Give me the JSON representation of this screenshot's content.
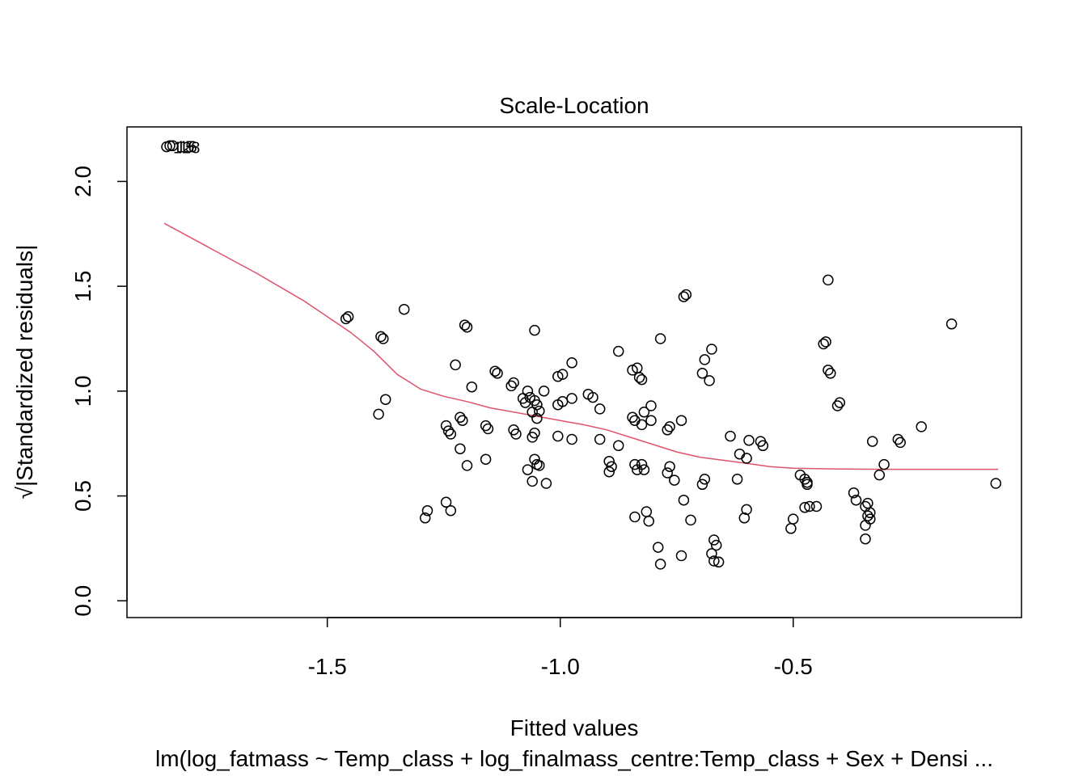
{
  "chart_data": {
    "type": "scatter",
    "title": "Scale-Location",
    "xlabel": "Fitted values",
    "ylabel": "√|Standardized residuals|",
    "subtitle": "lm(log_fatmass ~ Temp_class + log_finalmass_centre:Temp_class + Sex + Densi ...",
    "xlim": [
      -1.93,
      -0.01
    ],
    "ylim": [
      -0.08,
      2.26
    ],
    "x_ticks": [
      -1.5,
      -1.0,
      -0.5
    ],
    "x_tick_labels": [
      "-1.5",
      "-1.0",
      "-0.5"
    ],
    "y_ticks": [
      0.0,
      0.5,
      1.0,
      1.5,
      2.0
    ],
    "y_tick_labels": [
      "0.0",
      "0.5",
      "1.0",
      "1.5",
      "2.0"
    ],
    "grid": false,
    "colors": {
      "points": "#000000",
      "smoother": "#DF536B"
    },
    "labeled_points": [
      {
        "x": -1.845,
        "y": 2.165,
        "label": "128"
      },
      {
        "x": -1.838,
        "y": 2.17,
        "label": "15"
      },
      {
        "x": -1.832,
        "y": 2.17,
        "label": "16"
      }
    ],
    "points": [
      [
        -1.46,
        1.345
      ],
      [
        -1.455,
        1.355
      ],
      [
        -1.335,
        1.39
      ],
      [
        -1.385,
        1.26
      ],
      [
        -1.38,
        1.25
      ],
      [
        -1.39,
        0.89
      ],
      [
        -1.375,
        0.96
      ],
      [
        -1.205,
        1.315
      ],
      [
        -1.2,
        1.305
      ],
      [
        -1.225,
        1.125
      ],
      [
        -1.19,
        1.02
      ],
      [
        -1.215,
        0.875
      ],
      [
        -1.21,
        0.86
      ],
      [
        -1.245,
        0.835
      ],
      [
        -1.24,
        0.81
      ],
      [
        -1.235,
        0.795
      ],
      [
        -1.215,
        0.725
      ],
      [
        -1.2,
        0.645
      ],
      [
        -1.245,
        0.47
      ],
      [
        -1.285,
        0.43
      ],
      [
        -1.29,
        0.395
      ],
      [
        -1.235,
        0.43
      ],
      [
        -1.16,
        0.675
      ],
      [
        -1.16,
        0.835
      ],
      [
        -1.155,
        0.82
      ],
      [
        -1.14,
        1.095
      ],
      [
        -1.135,
        1.085
      ],
      [
        -1.105,
        1.025
      ],
      [
        -1.1,
        1.04
      ],
      [
        -1.1,
        0.815
      ],
      [
        -1.095,
        0.795
      ],
      [
        -1.08,
        0.965
      ],
      [
        -1.075,
        0.945
      ],
      [
        -1.07,
        1.0
      ],
      [
        -1.065,
        0.97
      ],
      [
        -1.06,
        0.9
      ],
      [
        -1.06,
        0.78
      ],
      [
        -1.055,
        0.955
      ],
      [
        -1.05,
        0.935
      ],
      [
        -1.05,
        0.87
      ],
      [
        -1.055,
        0.8
      ],
      [
        -1.06,
        0.57
      ],
      [
        -1.07,
        0.625
      ],
      [
        -1.055,
        0.675
      ],
      [
        -1.05,
        0.65
      ],
      [
        -1.045,
        0.645
      ],
      [
        -1.055,
        1.29
      ],
      [
        -1.035,
        1.0
      ],
      [
        -1.045,
        0.905
      ],
      [
        -1.005,
        1.07
      ],
      [
        -0.995,
        1.08
      ],
      [
        -0.975,
        1.135
      ],
      [
        -1.005,
        0.935
      ],
      [
        -0.995,
        0.95
      ],
      [
        -0.975,
        0.965
      ],
      [
        -1.005,
        0.785
      ],
      [
        -0.975,
        0.77
      ],
      [
        -1.03,
        0.56
      ],
      [
        -0.94,
        0.985
      ],
      [
        -0.93,
        0.97
      ],
      [
        -0.915,
        0.915
      ],
      [
        -0.915,
        0.77
      ],
      [
        -0.895,
        0.665
      ],
      [
        -0.89,
        0.64
      ],
      [
        -0.895,
        0.615
      ],
      [
        -0.875,
        0.74
      ],
      [
        -0.875,
        1.19
      ],
      [
        -0.845,
        1.1
      ],
      [
        -0.835,
        1.11
      ],
      [
        -0.83,
        1.065
      ],
      [
        -0.825,
        1.055
      ],
      [
        -0.845,
        0.875
      ],
      [
        -0.84,
        0.86
      ],
      [
        -0.82,
        0.9
      ],
      [
        -0.805,
        0.93
      ],
      [
        -0.805,
        0.86
      ],
      [
        -0.825,
        0.84
      ],
      [
        -0.84,
        0.65
      ],
      [
        -0.835,
        0.625
      ],
      [
        -0.825,
        0.65
      ],
      [
        -0.82,
        0.625
      ],
      [
        -0.785,
        1.25
      ],
      [
        -0.77,
        0.815
      ],
      [
        -0.765,
        0.83
      ],
      [
        -0.765,
        0.64
      ],
      [
        -0.77,
        0.61
      ],
      [
        -0.755,
        0.575
      ],
      [
        -0.84,
        0.4
      ],
      [
        -0.815,
        0.425
      ],
      [
        -0.81,
        0.38
      ],
      [
        -0.79,
        0.255
      ],
      [
        -0.785,
        0.175
      ],
      [
        -0.74,
        0.86
      ],
      [
        -0.735,
        1.45
      ],
      [
        -0.73,
        1.46
      ],
      [
        -0.735,
        0.48
      ],
      [
        -0.72,
        0.385
      ],
      [
        -0.74,
        0.215
      ],
      [
        -0.695,
        1.085
      ],
      [
        -0.69,
        1.15
      ],
      [
        -0.68,
        1.05
      ],
      [
        -0.675,
        1.2
      ],
      [
        -0.69,
        0.58
      ],
      [
        -0.695,
        0.555
      ],
      [
        -0.67,
        0.29
      ],
      [
        -0.665,
        0.265
      ],
      [
        -0.675,
        0.225
      ],
      [
        -0.67,
        0.19
      ],
      [
        -0.66,
        0.185
      ],
      [
        -0.635,
        0.785
      ],
      [
        -0.615,
        0.7
      ],
      [
        -0.6,
        0.68
      ],
      [
        -0.595,
        0.765
      ],
      [
        -0.57,
        0.76
      ],
      [
        -0.565,
        0.74
      ],
      [
        -0.62,
        0.58
      ],
      [
        -0.6,
        0.435
      ],
      [
        -0.605,
        0.395
      ],
      [
        -0.505,
        0.345
      ],
      [
        -0.5,
        0.39
      ],
      [
        -0.485,
        0.6
      ],
      [
        -0.475,
        0.58
      ],
      [
        -0.47,
        0.565
      ],
      [
        -0.47,
        0.555
      ],
      [
        -0.475,
        0.445
      ],
      [
        -0.465,
        0.45
      ],
      [
        -0.45,
        0.45
      ],
      [
        -0.425,
        1.53
      ],
      [
        -0.435,
        1.225
      ],
      [
        -0.43,
        1.235
      ],
      [
        -0.425,
        1.1
      ],
      [
        -0.42,
        1.085
      ],
      [
        -0.405,
        0.93
      ],
      [
        -0.4,
        0.945
      ],
      [
        -0.37,
        0.515
      ],
      [
        -0.365,
        0.48
      ],
      [
        -0.345,
        0.45
      ],
      [
        -0.34,
        0.465
      ],
      [
        -0.335,
        0.42
      ],
      [
        -0.34,
        0.405
      ],
      [
        -0.335,
        0.39
      ],
      [
        -0.345,
        0.36
      ],
      [
        -0.345,
        0.295
      ],
      [
        -0.33,
        0.76
      ],
      [
        -0.315,
        0.6
      ],
      [
        -0.305,
        0.65
      ],
      [
        -0.275,
        0.77
      ],
      [
        -0.27,
        0.755
      ],
      [
        -0.225,
        0.83
      ],
      [
        -0.16,
        1.32
      ],
      [
        -0.065,
        0.56
      ]
    ],
    "smoother": [
      [
        -1.85,
        1.8
      ],
      [
        -1.75,
        1.68
      ],
      [
        -1.65,
        1.56
      ],
      [
        -1.55,
        1.43
      ],
      [
        -1.45,
        1.28
      ],
      [
        -1.4,
        1.19
      ],
      [
        -1.35,
        1.08
      ],
      [
        -1.3,
        1.01
      ],
      [
        -1.25,
        0.975
      ],
      [
        -1.2,
        0.95
      ],
      [
        -1.15,
        0.92
      ],
      [
        -1.1,
        0.9
      ],
      [
        -1.05,
        0.88
      ],
      [
        -1.0,
        0.86
      ],
      [
        -0.95,
        0.84
      ],
      [
        -0.9,
        0.815
      ],
      [
        -0.85,
        0.78
      ],
      [
        -0.8,
        0.745
      ],
      [
        -0.75,
        0.71
      ],
      [
        -0.7,
        0.685
      ],
      [
        -0.65,
        0.67
      ],
      [
        -0.6,
        0.655
      ],
      [
        -0.55,
        0.64
      ],
      [
        -0.5,
        0.632
      ],
      [
        -0.4,
        0.628
      ],
      [
        -0.3,
        0.627
      ],
      [
        -0.2,
        0.627
      ],
      [
        -0.1,
        0.627
      ],
      [
        -0.06,
        0.627
      ]
    ]
  }
}
